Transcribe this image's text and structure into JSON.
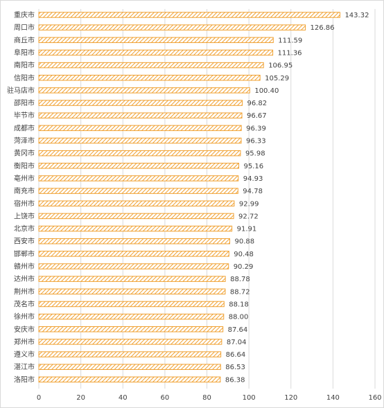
{
  "chart_data": {
    "type": "bar",
    "orientation": "horizontal",
    "title": "",
    "xlabel": "",
    "ylabel": "",
    "categories": [
      "重庆市",
      "周口市",
      "商丘市",
      "阜阳市",
      "南阳市",
      "信阳市",
      "驻马店市",
      "邵阳市",
      "毕节市",
      "成都市",
      "菏泽市",
      "黄冈市",
      "衡阳市",
      "亳州市",
      "南充市",
      "宿州市",
      "上饶市",
      "北京市",
      "西安市",
      "邯郸市",
      "赣州市",
      "达州市",
      "荆州市",
      "茂名市",
      "徐州市",
      "安庆市",
      "郑州市",
      "遵义市",
      "湛江市",
      "洛阳市"
    ],
    "values": [
      143.32,
      126.86,
      111.59,
      111.36,
      106.95,
      105.29,
      100.4,
      96.82,
      96.67,
      96.39,
      96.33,
      95.98,
      95.16,
      94.93,
      94.78,
      92.99,
      92.72,
      91.91,
      90.88,
      90.48,
      90.29,
      88.78,
      88.72,
      88.18,
      88.0,
      87.64,
      87.04,
      86.64,
      86.53,
      86.38
    ],
    "value_labels": [
      "143.32",
      "126.86",
      "111.59",
      "111.36",
      "106.95",
      "105.29",
      "100.40",
      "96.82",
      "96.67",
      "96.39",
      "96.33",
      "95.98",
      "95.16",
      "94.93",
      "94.78",
      "92.99",
      "92.72",
      "91.91",
      "90.88",
      "90.48",
      "90.29",
      "88.78",
      "88.72",
      "88.18",
      "88.00",
      "87.64",
      "87.04",
      "86.64",
      "86.53",
      "86.38"
    ],
    "xlim": [
      0,
      160
    ],
    "x_ticks": [
      0,
      20,
      40,
      60,
      80,
      100,
      120,
      140,
      160
    ],
    "grid": true,
    "legend": "none",
    "bar_style": "diagonal hatch",
    "colors": {
      "bar_stroke": "#F0A030",
      "bar_hatch": "#F0A030",
      "bar_fill": "#FFFFFF",
      "grid": "#D9D9D9",
      "text": "#404040"
    }
  }
}
